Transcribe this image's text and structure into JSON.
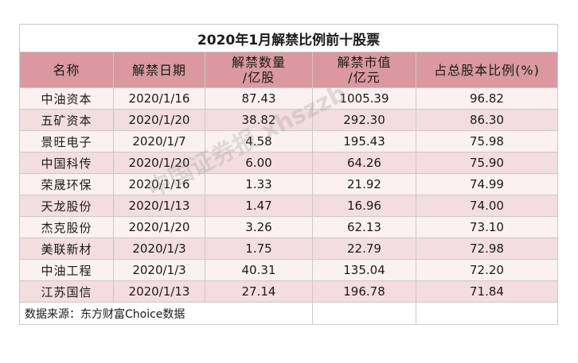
{
  "title": "2020年1月解禁比例前十股票",
  "headers": {
    "name": "名称",
    "date": "解禁日期",
    "quantity": "解禁数量\n/亿股",
    "market_value": "解禁市值\n/亿元",
    "ratio": "占总股本比例(%)"
  },
  "rows": [
    {
      "name": "中油资本",
      "date": "2020/1/16",
      "quantity": "87.43",
      "market_value": "1005.39",
      "ratio": "96.82"
    },
    {
      "name": "五矿资本",
      "date": "2020/1/20",
      "quantity": "38.82",
      "market_value": "292.30",
      "ratio": "86.30"
    },
    {
      "name": "景旺电子",
      "date": "2020/1/7",
      "quantity": "4.58",
      "market_value": "195.43",
      "ratio": "75.98"
    },
    {
      "name": "中国科传",
      "date": "2020/1/20",
      "quantity": "6.00",
      "market_value": "64.26",
      "ratio": "75.90"
    },
    {
      "name": "荣晟环保",
      "date": "2020/1/16",
      "quantity": "1.33",
      "market_value": "21.92",
      "ratio": "74.99"
    },
    {
      "name": "天龙股份",
      "date": "2020/1/13",
      "quantity": "1.47",
      "market_value": "16.96",
      "ratio": "74.00"
    },
    {
      "name": "杰克股份",
      "date": "2020/1/20",
      "quantity": "3.26",
      "market_value": "62.13",
      "ratio": "73.10"
    },
    {
      "name": "美联新材",
      "date": "2020/1/3",
      "quantity": "1.75",
      "market_value": "22.79",
      "ratio": "72.98"
    },
    {
      "name": "中油工程",
      "date": "2020/1/3",
      "quantity": "40.31",
      "market_value": "135.04",
      "ratio": "72.20"
    },
    {
      "name": "江苏国信",
      "date": "2020/1/13",
      "quantity": "27.14",
      "market_value": "196.78",
      "ratio": "71.84"
    }
  ],
  "source": "数据来源：东方财富Choice数据",
  "watermark": "中国证券报 xhszzb",
  "colors": {
    "header_bg": "#d9999e",
    "row_light": "#fbf1f1",
    "row_dark": "#f3dddf"
  }
}
